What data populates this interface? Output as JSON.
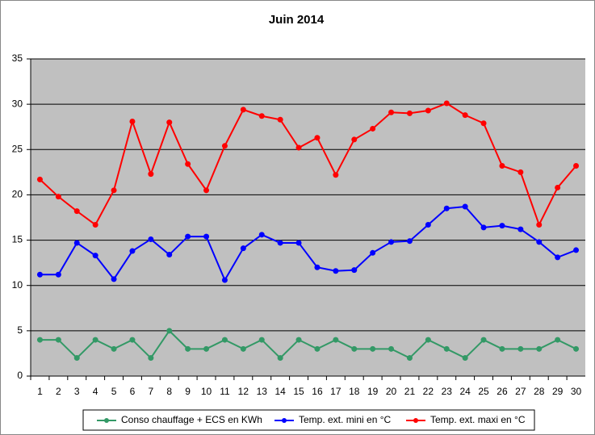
{
  "chart_data": {
    "type": "line",
    "title": "Juin 2014",
    "categories": [
      "1",
      "2",
      "3",
      "4",
      "5",
      "6",
      "7",
      "8",
      "9",
      "10",
      "11",
      "12",
      "13",
      "14",
      "15",
      "16",
      "17",
      "18",
      "19",
      "20",
      "21",
      "22",
      "23",
      "24",
      "25",
      "26",
      "27",
      "28",
      "29",
      "30"
    ],
    "series": [
      {
        "name": "Conso chauffage + ECS en KWh",
        "color": "#339966",
        "values": [
          4,
          4,
          2,
          4,
          3,
          4,
          2,
          5,
          3,
          3,
          4,
          3,
          4,
          2,
          4,
          3,
          4,
          3,
          3,
          3,
          2,
          4,
          3,
          2,
          4,
          3,
          3,
          3,
          4,
          3
        ]
      },
      {
        "name": "Temp. ext. mini en °C",
        "color": "#0000ff",
        "values": [
          11.2,
          11.2,
          14.7,
          13.3,
          10.7,
          13.8,
          15.1,
          13.4,
          15.4,
          15.4,
          10.6,
          14.1,
          15.6,
          14.7,
          14.7,
          12.0,
          11.6,
          11.7,
          13.6,
          14.8,
          14.9,
          16.7,
          18.5,
          18.7,
          16.4,
          16.6,
          16.2,
          14.8,
          13.1,
          13.9
        ]
      },
      {
        "name": "Temp. ext. maxi en °C",
        "color": "#ff0000",
        "values": [
          21.7,
          19.8,
          18.2,
          16.7,
          20.5,
          28.1,
          22.3,
          28.0,
          23.4,
          20.5,
          25.4,
          29.4,
          28.7,
          28.3,
          25.2,
          26.3,
          22.2,
          26.1,
          27.3,
          29.1,
          29.0,
          29.3,
          30.1,
          28.8,
          27.9,
          23.2,
          22.5,
          16.7,
          20.8,
          23.2
        ]
      }
    ],
    "ylim": [
      0,
      35
    ],
    "yticks": [
      0,
      5,
      10,
      15,
      20,
      25,
      30,
      35
    ],
    "grid": true,
    "legend": "bottom"
  }
}
